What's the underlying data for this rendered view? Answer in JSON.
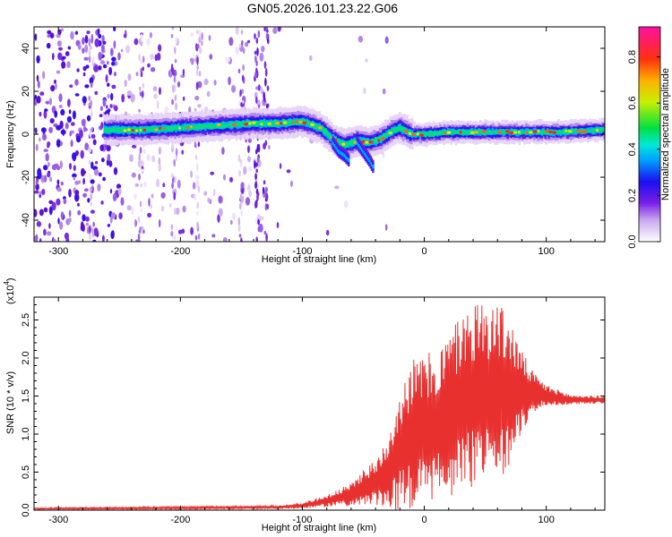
{
  "title": "GN05.2026.101.23.22.G06",
  "chart_data": [
    {
      "type": "heatmap",
      "xlabel": "Height of straight line (km)",
      "ylabel": "Frequency (Hz)",
      "xlim": [
        -320,
        148
      ],
      "ylim": [
        -50,
        50
      ],
      "x_ticks": [
        "-300",
        "-200",
        "-100",
        "0",
        "100"
      ],
      "x_tick_values": [
        -300,
        -200,
        -100,
        0,
        100
      ],
      "y_ticks": [
        "40",
        "20",
        "0",
        "-20",
        "-40"
      ],
      "y_tick_values": [
        40,
        20,
        0,
        -20,
        -40
      ],
      "colorbar": {
        "label": "Normalized spectral amplitude",
        "range": [
          0.0,
          0.93
        ],
        "ticks": [
          "0.0",
          "0.2",
          "0.4",
          "0.6",
          "0.8"
        ],
        "tick_values": [
          0.0,
          0.2,
          0.4,
          0.6,
          0.8
        ]
      },
      "ridge": {
        "x": [
          -260,
          -230,
          -200,
          -170,
          -140,
          -120,
          -100,
          -85,
          -75,
          -65,
          -55,
          -45,
          -35,
          -25,
          -20,
          -10,
          0,
          20,
          50,
          80,
          110,
          148
        ],
        "freq": [
          2,
          2,
          3,
          4,
          5,
          5,
          6,
          3,
          -2,
          -5,
          -3,
          -4,
          -2,
          2,
          3,
          0,
          0,
          1,
          1,
          1,
          1,
          2
        ]
      },
      "branches": [
        {
          "x": [
            -75,
            -70,
            -65,
            -62
          ],
          "freq": [
            -4,
            -8,
            -10,
            -12
          ]
        },
        {
          "x": [
            -55,
            -50,
            -45,
            -42
          ],
          "freq": [
            -4,
            -8,
            -12,
            -15
          ]
        }
      ]
    },
    {
      "type": "line",
      "xlabel": "Height of straight line (km)",
      "ylabel": "SNR (10 * v/v)",
      "yscale_label": "(x10",
      "yscale_exp": "4",
      "yscale_close": ")",
      "xlim": [
        -320,
        148
      ],
      "ylim": [
        0,
        2.8
      ],
      "x_ticks": [
        "-300",
        "-200",
        "-100",
        "0",
        "100"
      ],
      "x_tick_values": [
        -300,
        -200,
        -100,
        0,
        100
      ],
      "y_ticks": [
        "0.0",
        "0.5",
        "1.0",
        "1.5",
        "2.0",
        "2.5"
      ],
      "y_tick_values": [
        0.0,
        0.5,
        1.0,
        1.5,
        2.0,
        2.5
      ],
      "color": "#e8302e",
      "envelope": {
        "x": [
          -320,
          -200,
          -120,
          -100,
          -80,
          -60,
          -50,
          -40,
          -30,
          -20,
          -10,
          0,
          10,
          20,
          30,
          40,
          50,
          60,
          70,
          80,
          90,
          100,
          110,
          120,
          130,
          148
        ],
        "mid": [
          0.02,
          0.03,
          0.04,
          0.06,
          0.12,
          0.2,
          0.3,
          0.35,
          0.5,
          0.8,
          1.0,
          1.05,
          1.1,
          1.25,
          1.4,
          1.5,
          1.55,
          1.55,
          1.55,
          1.55,
          1.55,
          1.5,
          1.48,
          1.45,
          1.45,
          1.45
        ],
        "amp": [
          0.01,
          0.015,
          0.02,
          0.04,
          0.08,
          0.15,
          0.25,
          0.3,
          0.5,
          0.8,
          1.0,
          1.0,
          1.0,
          1.1,
          1.2,
          1.25,
          1.25,
          1.2,
          1.0,
          0.55,
          0.25,
          0.15,
          0.1,
          0.07,
          0.06,
          0.05
        ]
      }
    }
  ]
}
